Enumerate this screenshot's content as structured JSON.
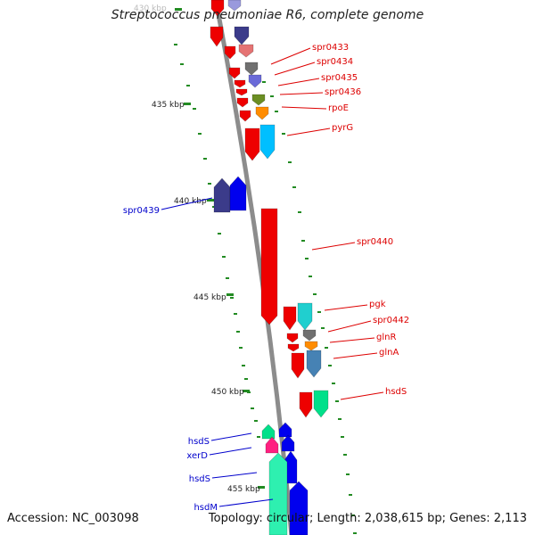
{
  "title": "Streptococcus pneumoniae R6, complete genome",
  "footer": {
    "accession": "Accession: NC_003098",
    "summary": "Topology: circular; Length: 2,038,615 bp; Genes: 2,113"
  },
  "colors": {
    "backbone": "#8c8c8c",
    "tick": "#228b22",
    "label_forward": "#dd0000",
    "label_reverse": "#0000cc",
    "gene_red": "#ee0000"
  },
  "scale_labels": [
    "430 kbp",
    "435 kbp",
    "440 kbp",
    "445 kbp",
    "450 kbp",
    "455 kbp"
  ],
  "right_labels": [
    "spr0433",
    "spr0434",
    "spr0435",
    "spr0436",
    "rpoE",
    "pyrG",
    "spr0440",
    "pgk",
    "spr0442",
    "glnR",
    "glnA",
    "hsdS"
  ],
  "left_labels": [
    "spr0439",
    "hsdS",
    "xerD",
    "hsdS",
    "hsdM"
  ]
}
